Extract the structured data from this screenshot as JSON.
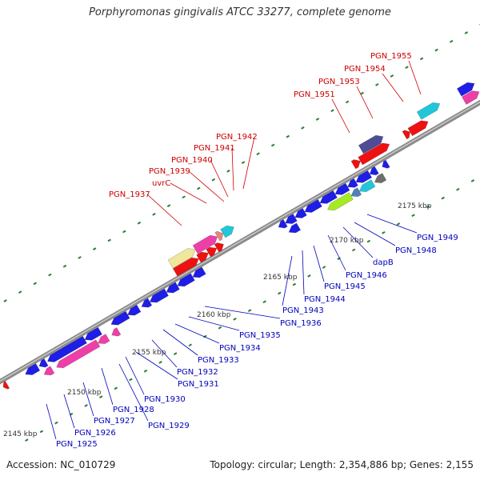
{
  "title": "Porphyromonas gingivalis ATCC 33277, complete genome",
  "footer": {
    "accession": "Accession: NC_010729",
    "info": "Topology: circular; Length: 2,354,886 bp; Genes: 2,155"
  },
  "colors": {
    "backbone": "#8c8c8c",
    "forward_label": "#cc0000",
    "reverse_label": "#0000bb",
    "tick_marks": "#2e7d32",
    "blue": "#1e1ee6",
    "pink": "#ee3fa8",
    "red": "#ee1111",
    "cyan": "#22c6da",
    "navy": "#4e4c94",
    "khaki": "#efe79b",
    "lime": "#a6ea22",
    "steel": "#4d82b8",
    "gray": "#6e6e6e",
    "salmon": "#e08a7e"
  },
  "scale_labels": [
    "2145 kbp",
    "2150 kbp",
    "2155 kbp",
    "2160 kbp",
    "2165 kbp",
    "2170 kbp",
    "2175 kbp"
  ],
  "forward_gene_labels": [
    "PGN_1937",
    "uvrC",
    "PGN_1939",
    "PGN_1940",
    "PGN_1941",
    "PGN_1942",
    "PGN_1951",
    "PGN_1953",
    "PGN_1954",
    "PGN_1955"
  ],
  "reverse_gene_labels": [
    "PGN_1925",
    "PGN_1926",
    "PGN_1927",
    "PGN_1928",
    "PGN_1929",
    "PGN_1930",
    "PGN_1931",
    "PGN_1932",
    "PGN_1933",
    "PGN_1934",
    "PGN_1935",
    "PGN_1936",
    "PGN_1943",
    "PGN_1944",
    "PGN_1945",
    "PGN_1946",
    "dapB",
    "PGN_1948",
    "PGN_1949"
  ]
}
